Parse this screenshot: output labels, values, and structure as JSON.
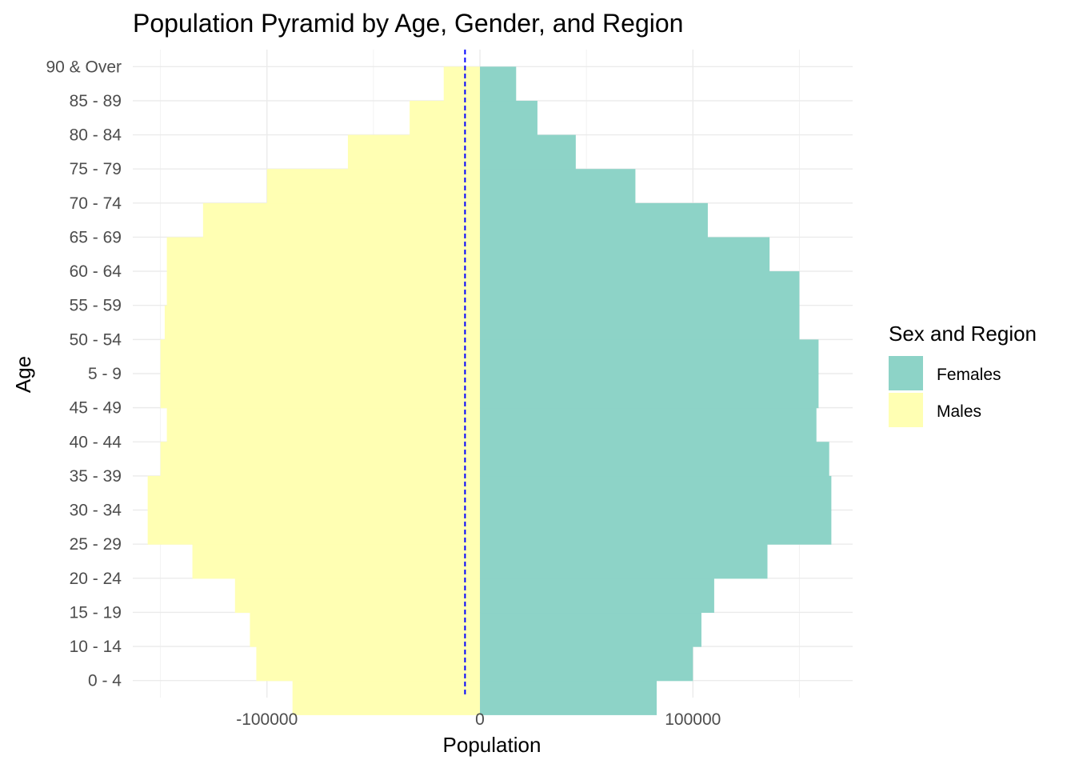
{
  "chart_data": {
    "type": "bar",
    "orientation": "horizontal",
    "title": "Population Pyramid by Age, Gender, and Region",
    "xlabel": "Population",
    "ylabel": "Age",
    "xlim": [
      -163000,
      175000
    ],
    "x_ticks": [
      -100000,
      0,
      100000
    ],
    "x_tick_labels": [
      "-100000",
      "0",
      "100000"
    ],
    "reference_line": {
      "x": -7000,
      "color": "#0000ff",
      "style": "dashed"
    },
    "categories": [
      "0 - 4",
      "10 - 14",
      "15 - 19",
      "20 - 24",
      "25 - 29",
      "30 - 34",
      "35 - 39",
      "40 - 44",
      "45 - 49",
      "5 - 9",
      "50 - 54",
      "55 - 59",
      "60 - 64",
      "65 - 69",
      "70 - 74",
      "75 - 79",
      "80 - 84",
      "85 - 89",
      "90 & Over"
    ],
    "series": [
      {
        "name": "Females",
        "color": "#8dd3c7",
        "values": [
          83000,
          100000,
          104000,
          110000,
          135000,
          165000,
          165000,
          164000,
          158000,
          159000,
          159000,
          150000,
          150000,
          136000,
          107000,
          73000,
          45000,
          27000,
          17000
        ]
      },
      {
        "name": "Males",
        "color": "#ffffb3",
        "values": [
          -88000,
          -105000,
          -108000,
          -115000,
          -135000,
          -156000,
          -156000,
          -150000,
          -147000,
          -150000,
          -150000,
          -148000,
          -147000,
          -147000,
          -130000,
          -100000,
          -62000,
          -33000,
          -17000
        ]
      }
    ],
    "legend": {
      "title": "Sex and Region",
      "position": "right",
      "entries": [
        "Females",
        "Males"
      ]
    },
    "grid": true
  }
}
